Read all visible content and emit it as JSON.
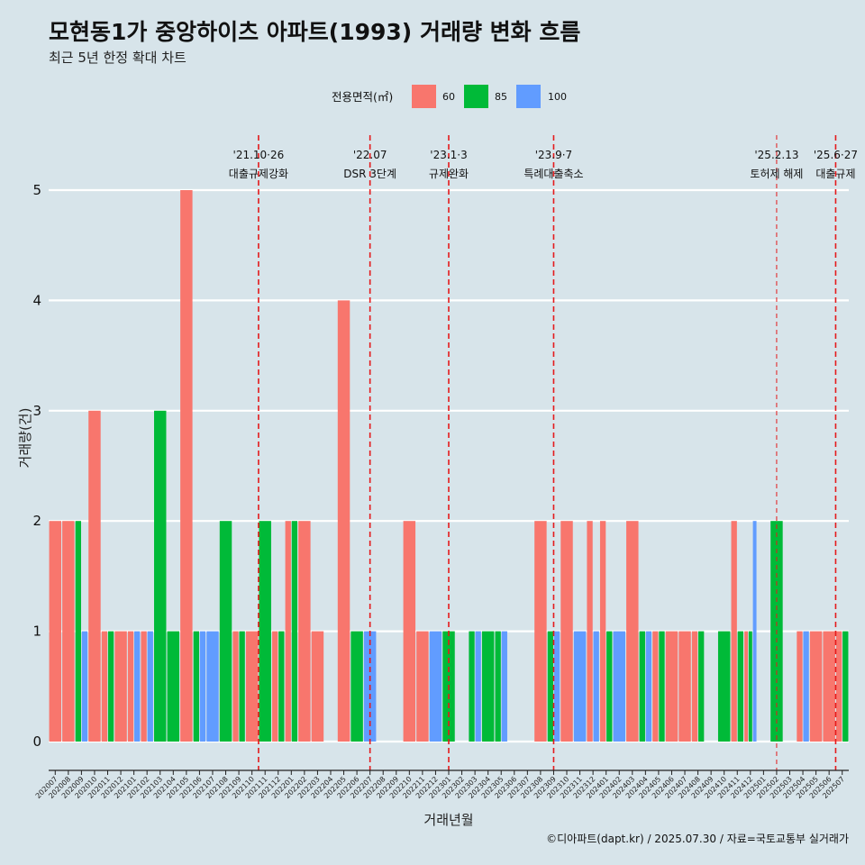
{
  "title": "모현동1가 중앙하이츠 아파트(1993) 거래량 변화 흐름",
  "subtitle": "최근 5년 한정 확대 차트",
  "caption": "©디아파트(dapt.kr) / 2025.07.30 / 자료=국토교통부 실거래가",
  "colors": {
    "background": "#d7e4ea",
    "60": "#f8766d",
    "85": "#00ba38",
    "100": "#619cff",
    "event_line": "#e41a1c",
    "grid": "#ffffff"
  },
  "chart_data": {
    "type": "bar",
    "xlabel": "거래년월",
    "ylabel": "거래량(건)",
    "ylim": [
      0,
      5
    ],
    "y_ticks": [
      0,
      1,
      2,
      3,
      4,
      5
    ],
    "grid": "horizontal",
    "legend": {
      "title": "전용면적(㎡)",
      "position": "top",
      "entries": [
        "60",
        "85",
        "100"
      ]
    },
    "categories": [
      "202007",
      "202008",
      "202009",
      "202010",
      "202011",
      "202012",
      "202101",
      "202102",
      "202103",
      "202104",
      "202105",
      "202106",
      "202107",
      "202108",
      "202109",
      "202110",
      "202111",
      "202112",
      "202201",
      "202202",
      "202203",
      "202204",
      "202205",
      "202206",
      "202207",
      "202208",
      "202209",
      "202210",
      "202211",
      "202212",
      "202301",
      "202302",
      "202303",
      "202304",
      "202305",
      "202306",
      "202307",
      "202308",
      "202309",
      "202310",
      "202311",
      "202312",
      "202401",
      "202402",
      "202403",
      "202404",
      "202405",
      "202406",
      "202407",
      "202408",
      "202409",
      "202410",
      "202411",
      "202412",
      "202501",
      "202502",
      "202503",
      "202504",
      "202505",
      "202506",
      "202507"
    ],
    "series": [
      {
        "name": "60",
        "values": [
          2,
          2,
          0,
          3,
          1,
          1,
          1,
          1,
          0,
          0,
          5,
          0,
          0,
          0,
          1,
          1,
          0,
          1,
          2,
          2,
          1,
          0,
          4,
          0,
          0,
          0,
          0,
          2,
          1,
          0,
          0,
          0,
          0,
          0,
          0,
          0,
          0,
          2,
          0,
          2,
          0,
          2,
          2,
          0,
          2,
          0,
          1,
          1,
          1,
          1,
          0,
          0,
          2,
          1,
          0,
          0,
          0,
          1,
          1,
          1,
          1
        ]
      },
      {
        "name": "85",
        "values": [
          0,
          0,
          2,
          0,
          1,
          0,
          0,
          0,
          3,
          1,
          0,
          1,
          0,
          2,
          1,
          0,
          2,
          1,
          2,
          0,
          0,
          0,
          0,
          1,
          0,
          0,
          0,
          0,
          0,
          0,
          1,
          0,
          1,
          1,
          1,
          0,
          0,
          0,
          1,
          0,
          0,
          0,
          1,
          0,
          0,
          1,
          1,
          0,
          0,
          1,
          0,
          1,
          1,
          1,
          0,
          2,
          0,
          0,
          0,
          0,
          1
        ]
      },
      {
        "name": "100",
        "values": [
          0,
          0,
          1,
          0,
          0,
          0,
          1,
          1,
          0,
          0,
          0,
          1,
          1,
          0,
          0,
          0,
          0,
          0,
          0,
          0,
          0,
          0,
          0,
          0,
          1,
          0,
          0,
          0,
          0,
          1,
          0,
          0,
          1,
          0,
          1,
          0,
          0,
          0,
          1,
          0,
          1,
          1,
          0,
          1,
          0,
          1,
          0,
          0,
          0,
          0,
          0,
          0,
          0,
          2,
          0,
          0,
          0,
          1,
          0,
          0,
          0
        ]
      }
    ],
    "events": [
      {
        "after": "202110",
        "at": "202110",
        "offset": 0.5,
        "date": "'21.10·26",
        "label": "대출규제강화",
        "style": "dashed"
      },
      {
        "at": "202207",
        "offset": 0.0,
        "date": "'22.07",
        "label": "DSR 3단계",
        "style": "dashed"
      },
      {
        "at": "202301",
        "offset": 0.0,
        "date": "'23.1·3",
        "label": "규제완화",
        "style": "dashed"
      },
      {
        "at": "202309",
        "offset": 0.0,
        "date": "'23.9·7",
        "label": "특례대출축소",
        "style": "dashed"
      },
      {
        "at": "202502",
        "offset": 0.0,
        "date": "'25.2.13",
        "label": "토허제 해제",
        "style": "dashed-thin"
      },
      {
        "at": "202506",
        "offset": 0.5,
        "date": "'25.6·27",
        "label": "대출규제",
        "style": "dashed"
      }
    ]
  }
}
